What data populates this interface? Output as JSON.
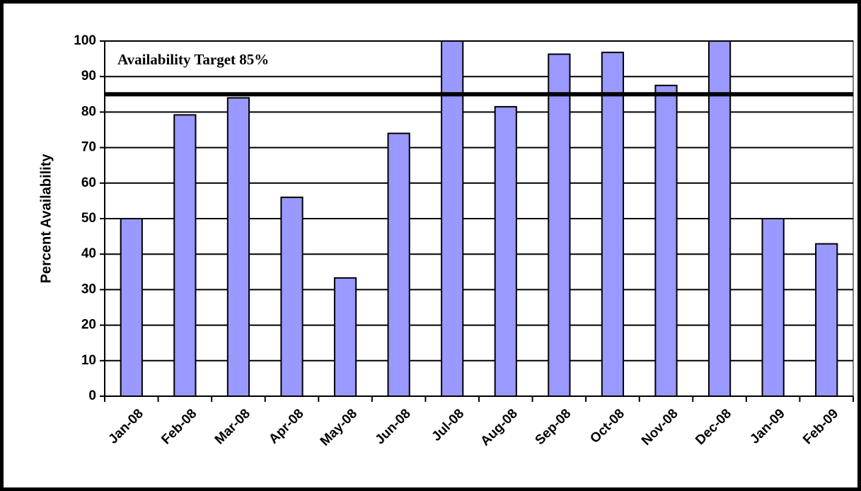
{
  "chart_data": {
    "type": "bar",
    "y_label": "Percent Availability",
    "annotation": "Availability Target 85%",
    "target": 85,
    "categories": [
      "Jan-08",
      "Feb-08",
      "Mar-08",
      "Apr-08",
      "May-08",
      "Jun-08",
      "Jul-08",
      "Aug-08",
      "Sep-08",
      "Oct-08",
      "Nov-08",
      "Dec-08",
      "Jan-09",
      "Feb-09"
    ],
    "values": [
      50,
      79.2,
      84,
      56,
      33.3,
      74,
      100,
      81.5,
      96.3,
      96.8,
      87.5,
      100,
      50,
      42.9
    ],
    "color": "#9999ff",
    "ylim": [
      0,
      100
    ],
    "yticks": [
      0,
      10,
      20,
      30,
      40,
      50,
      60,
      70,
      80,
      90,
      100
    ],
    "grid": true
  }
}
